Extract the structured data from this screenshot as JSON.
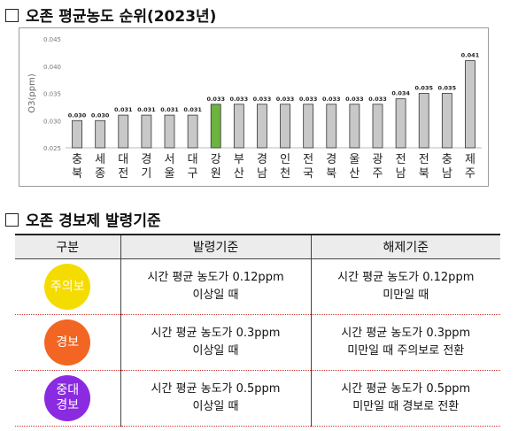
{
  "section1_title": "오존 평균농도 순위(2023년)",
  "section2_title": "오존 경보제 발령기준",
  "chart_data": {
    "type": "bar",
    "ylabel": "O3(ppm)",
    "ylim": [
      0.025,
      0.045
    ],
    "yticks": [
      "0.025",
      "0.030",
      "0.035",
      "0.040",
      "0.045"
    ],
    "ytick_values": [
      0.025,
      0.03,
      0.035,
      0.04,
      0.045
    ],
    "categories": [
      "충북",
      "세종",
      "대전",
      "경기",
      "서울",
      "대구",
      "강원",
      "부산",
      "경남",
      "인천",
      "전국",
      "경북",
      "울산",
      "광주",
      "전남",
      "전북",
      "충남",
      "제주"
    ],
    "values": [
      0.03,
      0.03,
      0.031,
      0.031,
      0.031,
      0.031,
      0.033,
      0.033,
      0.033,
      0.033,
      0.033,
      0.033,
      0.033,
      0.033,
      0.034,
      0.035,
      0.035,
      0.041
    ],
    "value_labels": [
      "0.030",
      "0.030",
      "0.031",
      "0.031",
      "0.031",
      "0.031",
      "0.033",
      "0.033",
      "0.033",
      "0.033",
      "0.033",
      "0.033",
      "0.033",
      "0.033",
      "0.034",
      "0.035",
      "0.035",
      "0.041"
    ],
    "highlight_index": 6,
    "colors": {
      "bar": "#c8c8c8",
      "highlight": "#6cb33f",
      "bar_stroke": "#333333"
    },
    "grid": false
  },
  "table": {
    "headers": [
      "구분",
      "발령기준",
      "해제기준"
    ],
    "rows": [
      {
        "level": "주의보",
        "color": "#f5dc00",
        "issue": [
          "시간 평균 농도가 0.12ppm",
          "이상일 때"
        ],
        "release": [
          "시간 평균 농도가 0.12ppm",
          "미만일 때"
        ]
      },
      {
        "level": "경보",
        "color": "#f26522",
        "issue": [
          "시간 평균 농도가 0.3ppm",
          "이상일 때"
        ],
        "release": [
          "시간 평균 농도가 0.3ppm",
          "미만일 때 주의보로 전환"
        ]
      },
      {
        "level": "중대경보",
        "level_lines": [
          "중대",
          "경보"
        ],
        "color": "#8a2be2",
        "issue": [
          "시간 평균 농도가 0.5ppm",
          "이상일 때"
        ],
        "release": [
          "시간 평균 농도가 0.5ppm",
          "미만일 때 경보로 전환"
        ]
      }
    ]
  }
}
